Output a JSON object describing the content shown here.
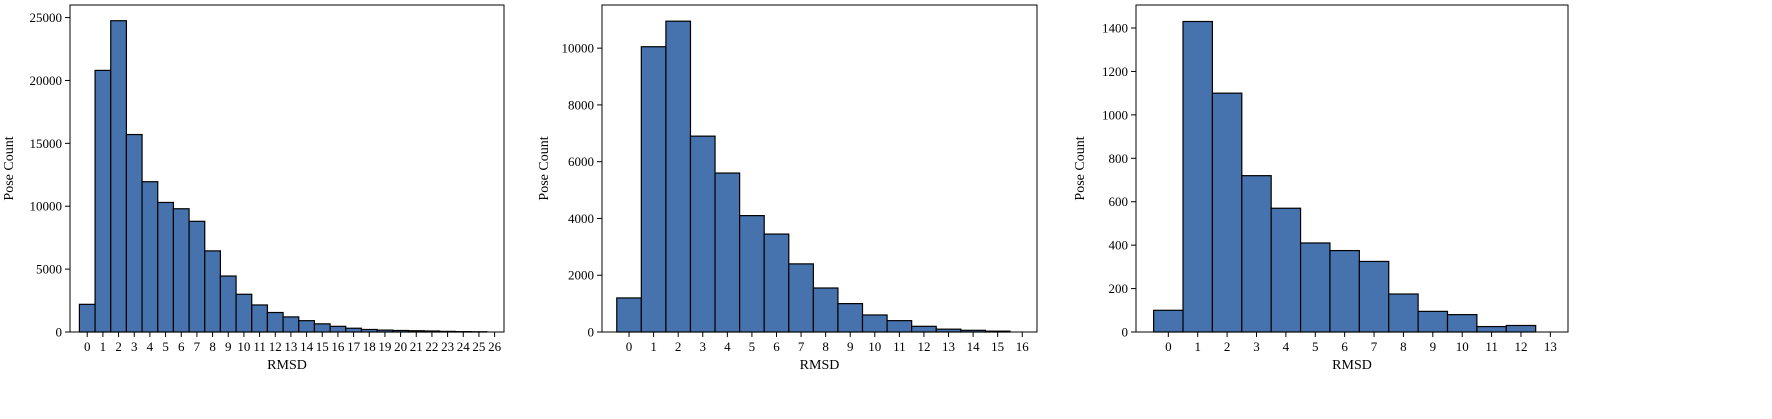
{
  "colors": {
    "bar_fill": "#4673ae",
    "bar_edge": "#000000",
    "axis": "#000000",
    "background": "#ffffff"
  },
  "chart_data": [
    {
      "type": "bar",
      "xlabel": "RMSD",
      "ylabel": "Pose Count",
      "bin_width": 1,
      "x_tick_labels": [
        "0",
        "1",
        "2",
        "3",
        "4",
        "5",
        "6",
        "7",
        "8",
        "9",
        "10",
        "11",
        "12",
        "13",
        "14",
        "15",
        "16",
        "17",
        "18",
        "19",
        "20",
        "21",
        "22",
        "23",
        "24",
        "25",
        "26"
      ],
      "y_ticks": [
        0,
        5000,
        10000,
        15000,
        20000,
        25000
      ],
      "y_tick_labels": [
        "0",
        "5000",
        "10000",
        "15000",
        "20000",
        "25000"
      ],
      "xlim": [
        -1.1,
        26.6
      ],
      "ylim": [
        0,
        26000
      ],
      "bin_centers": [
        0,
        1,
        2,
        3,
        4,
        5,
        6,
        7,
        8,
        9,
        10,
        11,
        12,
        13,
        14,
        15,
        16,
        17,
        18,
        19,
        20,
        21,
        22,
        23,
        24,
        25
      ],
      "values": [
        2200,
        20800,
        24750,
        15700,
        11950,
        10300,
        9800,
        8800,
        6450,
        4450,
        3000,
        2150,
        1550,
        1200,
        900,
        650,
        450,
        300,
        200,
        150,
        120,
        100,
        80,
        50,
        30,
        20
      ],
      "grid": false,
      "legend": "none"
    },
    {
      "type": "bar",
      "xlabel": "RMSD",
      "ylabel": "Pose Count",
      "bin_width": 1,
      "x_tick_labels": [
        "0",
        "1",
        "2",
        "3",
        "4",
        "5",
        "6",
        "7",
        "8",
        "9",
        "10",
        "11",
        "12",
        "13",
        "14",
        "15",
        "16"
      ],
      "y_ticks": [
        0,
        2000,
        4000,
        6000,
        8000,
        10000
      ],
      "y_tick_labels": [
        "0",
        "2000",
        "4000",
        "6000",
        "8000",
        "10000"
      ],
      "xlim": [
        -1.1,
        16.6
      ],
      "ylim": [
        0,
        11520
      ],
      "bin_centers": [
        0,
        1,
        2,
        3,
        4,
        5,
        6,
        7,
        8,
        9,
        10,
        11,
        12,
        13,
        14,
        15
      ],
      "values": [
        1200,
        10050,
        10950,
        6900,
        5600,
        4100,
        3450,
        2400,
        1550,
        1000,
        600,
        400,
        200,
        100,
        60,
        30
      ],
      "grid": false,
      "legend": "none"
    },
    {
      "type": "bar",
      "xlabel": "RMSD",
      "ylabel": "Pose Count",
      "bin_width": 1,
      "x_tick_labels": [
        "0",
        "1",
        "2",
        "3",
        "4",
        "5",
        "6",
        "7",
        "8",
        "9",
        "10",
        "11",
        "12",
        "13"
      ],
      "y_ticks": [
        0,
        200,
        400,
        600,
        800,
        1000,
        1200,
        1400
      ],
      "y_tick_labels": [
        "0",
        "200",
        "400",
        "600",
        "800",
        "1000",
        "1200",
        "1400"
      ],
      "xlim": [
        -1.1,
        13.6
      ],
      "ylim": [
        0,
        1506
      ],
      "bin_centers": [
        0,
        1,
        2,
        3,
        4,
        5,
        6,
        7,
        8,
        9,
        10,
        11,
        12
      ],
      "values": [
        100,
        1430,
        1100,
        720,
        570,
        410,
        375,
        325,
        175,
        95,
        80,
        25,
        30
      ],
      "grid": false,
      "legend": "none"
    }
  ]
}
